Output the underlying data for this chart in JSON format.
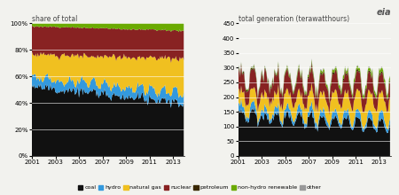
{
  "title_left": "share of total",
  "title_right": "total generation (terawatthours)",
  "colors": {
    "coal": "#111111",
    "hydro": "#3399dd",
    "natural_gas": "#f0c020",
    "nuclear": "#882222",
    "petroleum": "#3a2800",
    "non_hydro_renewable": "#6aaa00",
    "other": "#999999"
  },
  "background_color": "#f2f2ee",
  "ylim_left": [
    0,
    100
  ],
  "ylim_right": [
    0,
    450
  ],
  "xticks": [
    2001,
    2003,
    2005,
    2007,
    2009,
    2011,
    2013
  ],
  "yticks_left": [
    0,
    20,
    40,
    60,
    80,
    100
  ],
  "yticks_right": [
    0,
    50,
    100,
    150,
    200,
    250,
    300,
    350,
    400,
    450
  ],
  "n_months": 156,
  "seed": 12
}
